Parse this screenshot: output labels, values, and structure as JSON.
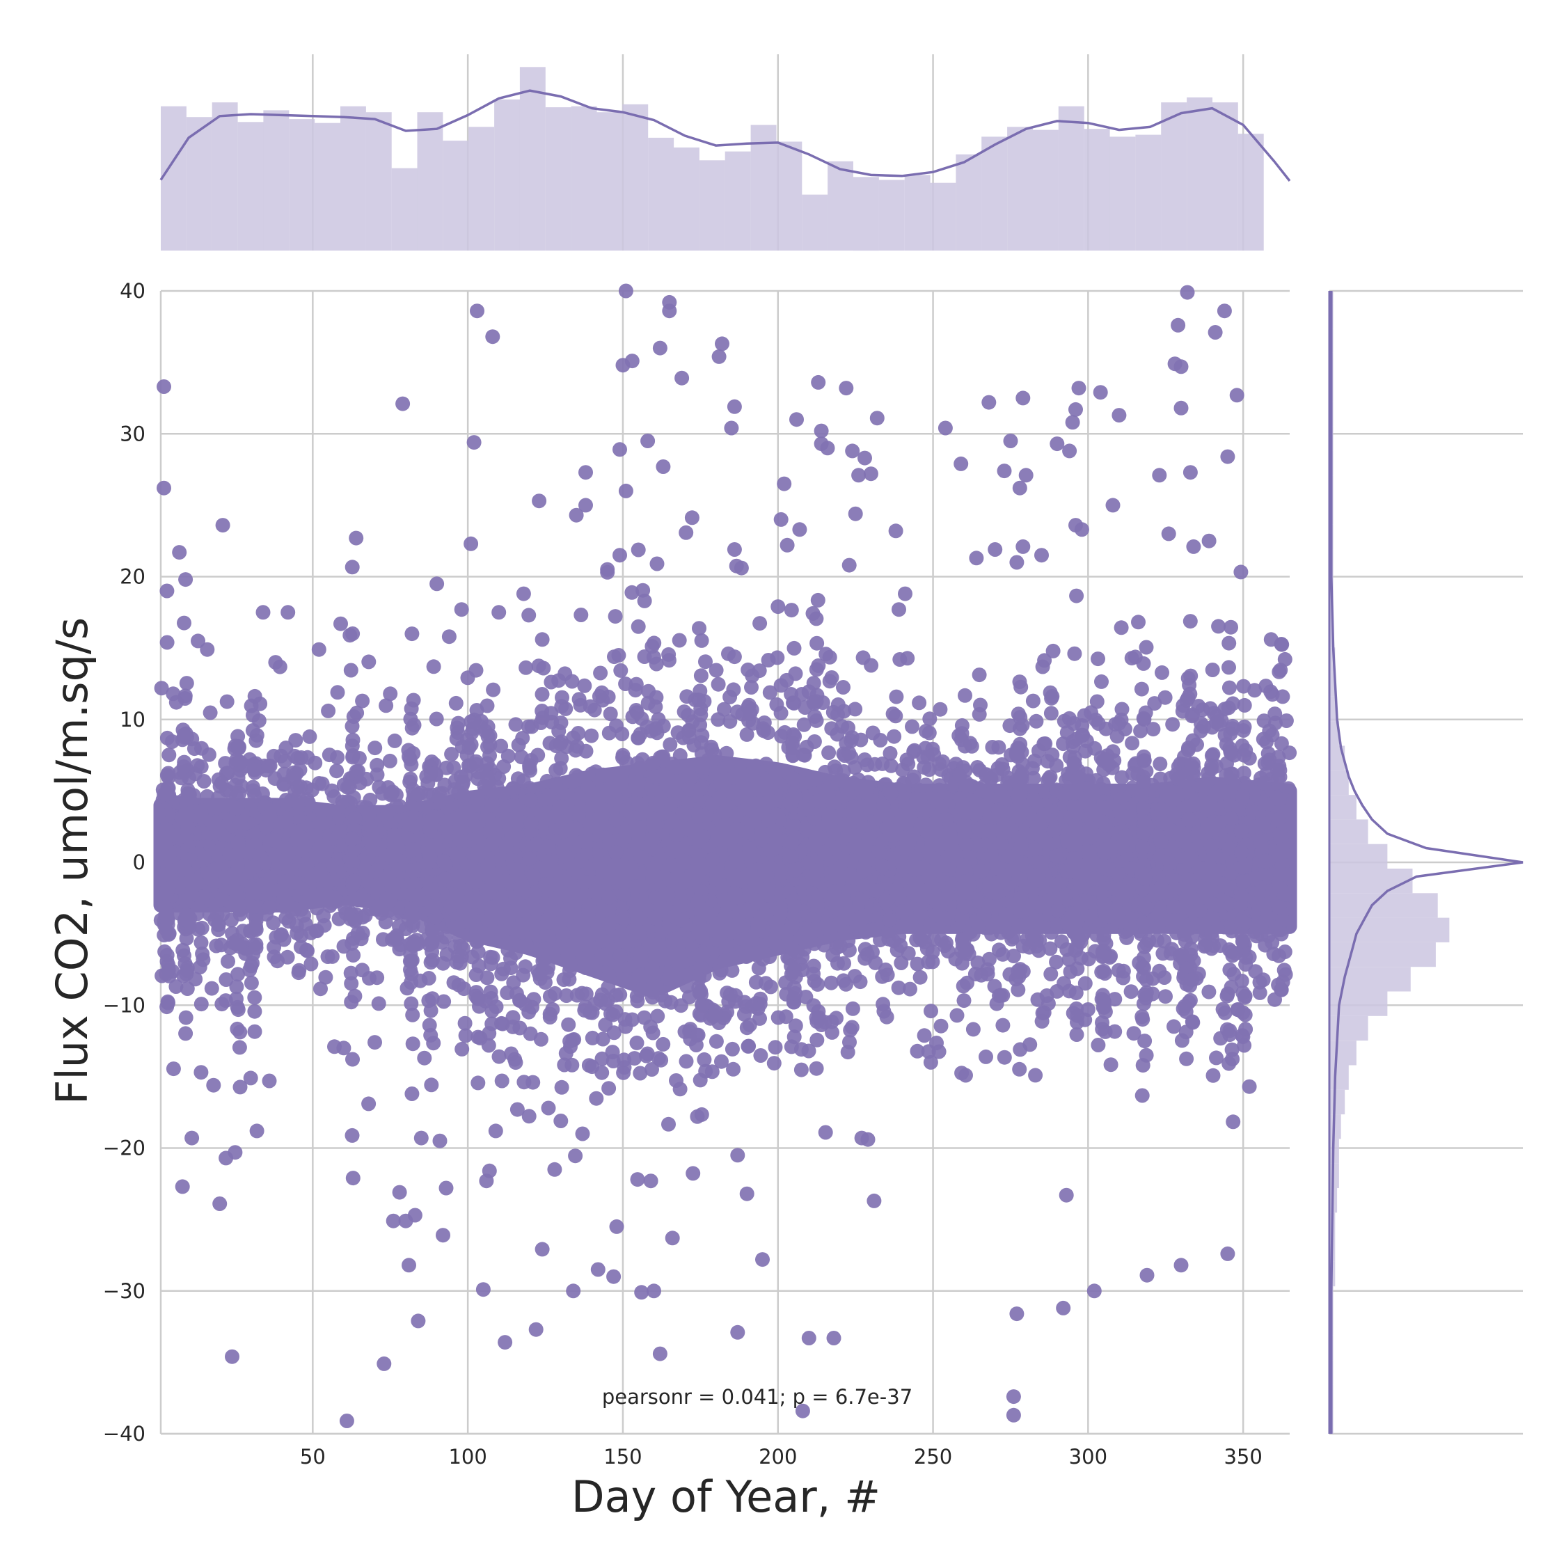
{
  "chart_data": {
    "type": "scatter",
    "kind": "jointplot",
    "title": "",
    "xlabel": "Day of Year, #",
    "ylabel": "Flux CO2, umol/m.sq/s",
    "xlim": [
      1,
      365
    ],
    "ylim": [
      -40,
      40
    ],
    "x_ticks": [
      50,
      100,
      150,
      200,
      250,
      300,
      350
    ],
    "y_ticks": [
      -40,
      -30,
      -20,
      -10,
      0,
      10,
      20,
      30,
      40
    ],
    "grid": true,
    "annotation": "pearsonr = 0.041; p = 6.7e-37",
    "colors": {
      "points": "#8172b2",
      "hist_fill": "#cbc6e0",
      "kde_line": "#7a6db0",
      "grid": "#cccccc"
    },
    "core_band": {
      "x": [
        1,
        20,
        40,
        60,
        80,
        100,
        120,
        140,
        160,
        180,
        200,
        220,
        240,
        260,
        280,
        300,
        320,
        340,
        365
      ],
      "y_upper": [
        4,
        4,
        4,
        3.5,
        3.5,
        4.5,
        5,
        6,
        6.5,
        7,
        6.5,
        5.5,
        5,
        5,
        5,
        5,
        5,
        5.5,
        5
      ],
      "y_lower": [
        -3,
        -3,
        -3,
        -2.5,
        -3,
        -5,
        -6,
        -7.5,
        -9,
        -7,
        -6,
        -5,
        -4.5,
        -4.5,
        -4.5,
        -4.5,
        -4.5,
        -4.5,
        -4.5
      ]
    },
    "points": [
      [
        2,
        33.3
      ],
      [
        2,
        26.2
      ],
      [
        3,
        19
      ],
      [
        5,
        11.8
      ],
      [
        6,
        11.2
      ],
      [
        7,
        21.7
      ],
      [
        8,
        -22.7
      ],
      [
        9,
        19.8
      ],
      [
        11,
        -19.3
      ],
      [
        13,
        15.5
      ],
      [
        14,
        -14.7
      ],
      [
        16,
        14.9
      ],
      [
        18,
        -15.6
      ],
      [
        20,
        -23.9
      ],
      [
        21,
        23.6
      ],
      [
        22,
        -20.7
      ],
      [
        24,
        -34.6
      ],
      [
        25,
        -20.3
      ],
      [
        30,
        -15.1
      ],
      [
        32,
        -18.8
      ],
      [
        33,
        11.1
      ],
      [
        34,
        17.5
      ],
      [
        36,
        -15.3
      ],
      [
        38,
        14
      ],
      [
        42,
        17.5
      ],
      [
        49,
        8.8
      ],
      [
        52,
        14.9
      ],
      [
        55,
        10.6
      ],
      [
        57,
        -12.9
      ],
      [
        58,
        11.9
      ],
      [
        59,
        16.7
      ],
      [
        60,
        -13
      ],
      [
        61,
        -39.1
      ],
      [
        62,
        15.9
      ],
      [
        63,
        -22.1
      ],
      [
        64,
        22.7
      ],
      [
        66,
        11.3
      ],
      [
        68,
        -16.9
      ],
      [
        70,
        -12.6
      ],
      [
        73,
        -35.1
      ],
      [
        75,
        11.8
      ],
      [
        76,
        -25.1
      ],
      [
        78,
        -23.1
      ],
      [
        79,
        32.1
      ],
      [
        80,
        -25.1
      ],
      [
        81,
        -28.2
      ],
      [
        82,
        -16.2
      ],
      [
        83,
        -24.7
      ],
      [
        84,
        -32.1
      ],
      [
        85,
        -19.3
      ],
      [
        86,
        -13.7
      ],
      [
        88,
        -12.1
      ],
      [
        89,
        13.7
      ],
      [
        90,
        19.5
      ],
      [
        91,
        -19.5
      ],
      [
        92,
        -26.1
      ],
      [
        93,
        -22.8
      ],
      [
        94,
        15.8
      ],
      [
        98,
        17.7
      ],
      [
        101,
        22.3
      ],
      [
        102,
        29.4
      ],
      [
        103,
        38.6
      ],
      [
        104,
        -12.3
      ],
      [
        105,
        -29.9
      ],
      [
        106,
        -22.3
      ],
      [
        107,
        -21.6
      ],
      [
        108,
        36.8
      ],
      [
        109,
        -18.8
      ],
      [
        110,
        17.5
      ],
      [
        111,
        -15.3
      ],
      [
        112,
        -33.6
      ],
      [
        114,
        -13.4
      ],
      [
        116,
        -17.3
      ],
      [
        118,
        18.8
      ],
      [
        121,
        -15.4
      ],
      [
        122,
        -32.7
      ],
      [
        123,
        25.3
      ],
      [
        124,
        15.6
      ],
      [
        126,
        -17.2
      ],
      [
        128,
        -21.5
      ],
      [
        130,
        -18.1
      ],
      [
        134,
        -30
      ],
      [
        135,
        24.3
      ],
      [
        137,
        -19
      ],
      [
        138,
        27.3
      ],
      [
        138,
        25
      ],
      [
        142,
        -28.5
      ],
      [
        145,
        20.5
      ],
      [
        145,
        20.3
      ],
      [
        147,
        -29
      ],
      [
        148,
        -25.5
      ],
      [
        149,
        21.5
      ],
      [
        149,
        28.9
      ],
      [
        150,
        34.8
      ],
      [
        151,
        26
      ],
      [
        151,
        40
      ],
      [
        153,
        35.1
      ],
      [
        155,
        16.5
      ],
      [
        156,
        -30.1
      ],
      [
        157,
        18.3
      ],
      [
        158,
        29.5
      ],
      [
        159,
        -22.3
      ],
      [
        160,
        -30
      ],
      [
        161,
        20.9
      ],
      [
        162,
        -34.4
      ],
      [
        162,
        36
      ],
      [
        163,
        27.7
      ],
      [
        165,
        39.2
      ],
      [
        165,
        38.6
      ],
      [
        166,
        -26.3
      ],
      [
        169,
        33.9
      ],
      [
        174,
        -17.8
      ],
      [
        181,
        35.4
      ],
      [
        182,
        36.3
      ],
      [
        184,
        14.6
      ],
      [
        185,
        30.4
      ],
      [
        186,
        31.9
      ],
      [
        186,
        21.9
      ],
      [
        187,
        -20.5
      ],
      [
        187,
        -32.9
      ],
      [
        190,
        -23.2
      ],
      [
        195,
        -27.8
      ],
      [
        200,
        17.9
      ],
      [
        201,
        24
      ],
      [
        202,
        26.5
      ],
      [
        203,
        22.2
      ],
      [
        206,
        31
      ],
      [
        207,
        23.3
      ],
      [
        208,
        -38.4
      ],
      [
        210,
        -33.3
      ],
      [
        213,
        33.6
      ],
      [
        214,
        30.2
      ],
      [
        214,
        29.3
      ],
      [
        216,
        29
      ],
      [
        218,
        -33.3
      ],
      [
        222,
        33.2
      ],
      [
        223,
        20.8
      ],
      [
        224,
        28.8
      ],
      [
        225,
        24.4
      ],
      [
        226,
        27.1
      ],
      [
        227,
        -19.3
      ],
      [
        228,
        28.3
      ],
      [
        229,
        -19.4
      ],
      [
        230,
        27.2
      ],
      [
        231,
        -23.7
      ],
      [
        232,
        31.1
      ],
      [
        238,
        23.2
      ],
      [
        239,
        17.7
      ],
      [
        241,
        18.8
      ],
      [
        254,
        30.4
      ],
      [
        259,
        27.9
      ],
      [
        264,
        21.3
      ],
      [
        268,
        32.2
      ],
      [
        270,
        21.9
      ],
      [
        273,
        27.4
      ],
      [
        275,
        29.5
      ],
      [
        276,
        -37.4
      ],
      [
        276,
        -38.7
      ],
      [
        277,
        21
      ],
      [
        277,
        -31.6
      ],
      [
        278,
        26.2
      ],
      [
        279,
        22.1
      ],
      [
        279,
        32.5
      ],
      [
        280,
        27.1
      ],
      [
        285,
        21.5
      ],
      [
        290,
        29.3
      ],
      [
        292,
        -31.2
      ],
      [
        293,
        -23.3
      ],
      [
        294,
        28.8
      ],
      [
        295,
        30.8
      ],
      [
        296,
        31.7
      ],
      [
        296,
        23.6
      ],
      [
        297,
        33.2
      ],
      [
        298,
        23.3
      ],
      [
        302,
        -30
      ],
      [
        304,
        32.9
      ],
      [
        308,
        25
      ],
      [
        310,
        31.3
      ],
      [
        319,
        -28.9
      ],
      [
        323,
        27.1
      ],
      [
        326,
        23
      ],
      [
        328,
        34.9
      ],
      [
        329,
        37.6
      ],
      [
        330,
        34.7
      ],
      [
        330,
        31.8
      ],
      [
        330,
        -28.2
      ],
      [
        332,
        39.9
      ],
      [
        333,
        27.3
      ],
      [
        334,
        22.1
      ],
      [
        339,
        22.5
      ],
      [
        341,
        37.1
      ],
      [
        344,
        38.6
      ],
      [
        345,
        28.4
      ],
      [
        345,
        -27.4
      ],
      [
        348,
        32.7
      ],
      [
        352,
        -15.7
      ],
      [
        359,
        15.6
      ]
    ],
    "top_histogram": {
      "bin_edges_start": 1,
      "bin_width": 8.27,
      "heights": [
        1.47,
        1.36,
        1.51,
        1.31,
        1.43,
        1.34,
        1.3,
        1.47,
        1.41,
        0.84,
        1.41,
        1.12,
        1.26,
        1.54,
        1.87,
        1.46,
        1.47,
        1.41,
        1.49,
        1.15,
        1.05,
        0.92,
        1.01,
        1.28,
        1.11,
        0.57,
        0.91,
        0.75,
        0.72,
        0.77,
        0.69,
        0.98,
        1.16,
        1.26,
        1.23,
        1.47,
        1.24,
        1.16,
        1.18,
        1.51,
        1.56,
        1.51,
        1.19
      ],
      "kde_x": [
        1,
        10,
        20,
        30,
        40,
        50,
        60,
        70,
        80,
        90,
        100,
        110,
        120,
        130,
        140,
        150,
        160,
        170,
        180,
        190,
        200,
        210,
        220,
        230,
        240,
        250,
        260,
        270,
        280,
        290,
        300,
        310,
        320,
        330,
        340,
        350,
        360,
        365
      ],
      "kde_y": [
        0.72,
        1.15,
        1.37,
        1.39,
        1.38,
        1.37,
        1.36,
        1.34,
        1.22,
        1.24,
        1.38,
        1.55,
        1.63,
        1.57,
        1.45,
        1.41,
        1.33,
        1.17,
        1.07,
        1.09,
        1.1,
        0.98,
        0.83,
        0.77,
        0.76,
        0.8,
        0.9,
        1.08,
        1.24,
        1.32,
        1.3,
        1.23,
        1.26,
        1.4,
        1.45,
        1.28,
        0.91,
        0.71
      ]
    },
    "right_histogram": {
      "bin_edges_start": -40,
      "bin_width": 1.72,
      "widths": [
        0.02,
        0.02,
        0.02,
        0.02,
        0.02,
        0.02,
        0.03,
        0.03,
        0.03,
        0.04,
        0.05,
        0.05,
        0.06,
        0.08,
        0.1,
        0.14,
        0.2,
        0.3,
        0.42,
        0.55,
        0.62,
        0.56,
        0.43,
        0.3,
        0.2,
        0.14,
        0.1,
        0.08,
        0.05,
        0.04,
        0.03,
        0.03,
        0.02,
        0.02,
        0.02,
        0.02,
        0.02,
        0.02,
        0.02,
        0.02,
        0.02,
        0.02,
        0.02,
        0.02,
        0.02,
        0.02,
        0.02
      ],
      "kde_y": [
        -40,
        -30,
        -20,
        -15,
        -10,
        -8,
        -6,
        -5,
        -4,
        -3,
        -2,
        -1,
        0,
        1,
        2,
        3,
        4,
        5,
        6,
        8,
        10,
        15,
        20,
        30,
        40
      ],
      "kde_x": [
        0.01,
        0.01,
        0.02,
        0.03,
        0.05,
        0.08,
        0.12,
        0.14,
        0.18,
        0.22,
        0.3,
        0.45,
        1.0,
        0.5,
        0.3,
        0.22,
        0.17,
        0.13,
        0.1,
        0.06,
        0.04,
        0.02,
        0.01,
        0.01,
        0.01
      ]
    }
  }
}
